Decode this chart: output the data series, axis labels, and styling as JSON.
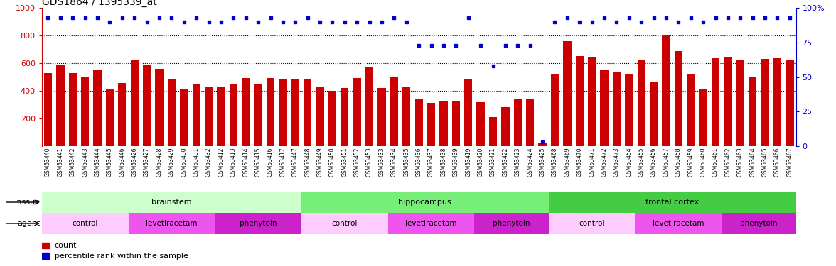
{
  "title": "GDS1864 / 1395339_at",
  "samples": [
    "GSM53440",
    "GSM53441",
    "GSM53442",
    "GSM53443",
    "GSM53444",
    "GSM53445",
    "GSM53446",
    "GSM53426",
    "GSM53427",
    "GSM53428",
    "GSM53429",
    "GSM53430",
    "GSM53431",
    "GSM53432",
    "GSM53412",
    "GSM53413",
    "GSM53414",
    "GSM53415",
    "GSM53416",
    "GSM53417",
    "GSM53447",
    "GSM53448",
    "GSM53449",
    "GSM53450",
    "GSM53451",
    "GSM53452",
    "GSM53453",
    "GSM53433",
    "GSM53434",
    "GSM53435",
    "GSM53436",
    "GSM53437",
    "GSM53438",
    "GSM53439",
    "GSM53419",
    "GSM53420",
    "GSM53421",
    "GSM53422",
    "GSM53423",
    "GSM53424",
    "GSM53425",
    "GSM53468",
    "GSM53469",
    "GSM53470",
    "GSM53471",
    "GSM53472",
    "GSM53473",
    "GSM53454",
    "GSM53455",
    "GSM53456",
    "GSM53457",
    "GSM53458",
    "GSM53459",
    "GSM53460",
    "GSM53461",
    "GSM53462",
    "GSM53463",
    "GSM53464",
    "GSM53465",
    "GSM53466",
    "GSM53467"
  ],
  "counts": [
    530,
    590,
    530,
    500,
    550,
    410,
    460,
    620,
    590,
    560,
    490,
    410,
    455,
    425,
    425,
    445,
    495,
    455,
    495,
    485,
    485,
    485,
    425,
    400,
    420,
    495,
    570,
    420,
    500,
    425,
    340,
    315,
    325,
    325,
    485,
    320,
    210,
    285,
    345,
    345,
    25,
    525,
    760,
    655,
    645,
    550,
    540,
    525,
    625,
    465,
    800,
    690,
    520,
    410,
    635,
    640,
    625,
    505,
    630,
    635,
    625
  ],
  "percentiles_pct": [
    93,
    93,
    93,
    93,
    93,
    90,
    93,
    93,
    90,
    93,
    93,
    90,
    93,
    90,
    90,
    93,
    93,
    90,
    93,
    90,
    90,
    93,
    90,
    90,
    90,
    90,
    90,
    90,
    93,
    90,
    73,
    73,
    73,
    73,
    93,
    73,
    58,
    73,
    73,
    73,
    3,
    90,
    93,
    90,
    90,
    93,
    90,
    93,
    90,
    93,
    93,
    90,
    93,
    90,
    93,
    93,
    93,
    93,
    93,
    93,
    93
  ],
  "bar_color": "#cc0000",
  "dot_color": "#0000cc",
  "tissue_groups": [
    {
      "label": "brainstem",
      "start": 0,
      "end": 20,
      "color": "#ccffcc"
    },
    {
      "label": "hippocampus",
      "start": 21,
      "end": 40,
      "color": "#77ee77"
    },
    {
      "label": "frontal cortex",
      "start": 41,
      "end": 60,
      "color": "#44cc44"
    }
  ],
  "agent_groups": [
    {
      "label": "control",
      "start": 0,
      "end": 6,
      "color": "#ffccff"
    },
    {
      "label": "levetiracetam",
      "start": 7,
      "end": 13,
      "color": "#ee55ee"
    },
    {
      "label": "phenytoin",
      "start": 14,
      "end": 20,
      "color": "#cc22cc"
    },
    {
      "label": "control",
      "start": 21,
      "end": 27,
      "color": "#ffccff"
    },
    {
      "label": "levetiracetam",
      "start": 28,
      "end": 34,
      "color": "#ee55ee"
    },
    {
      "label": "phenytoin",
      "start": 35,
      "end": 40,
      "color": "#cc22cc"
    },
    {
      "label": "control",
      "start": 41,
      "end": 47,
      "color": "#ffccff"
    },
    {
      "label": "levetiracetam",
      "start": 48,
      "end": 54,
      "color": "#ee55ee"
    },
    {
      "label": "phenytoin",
      "start": 55,
      "end": 60,
      "color": "#cc22cc"
    }
  ]
}
